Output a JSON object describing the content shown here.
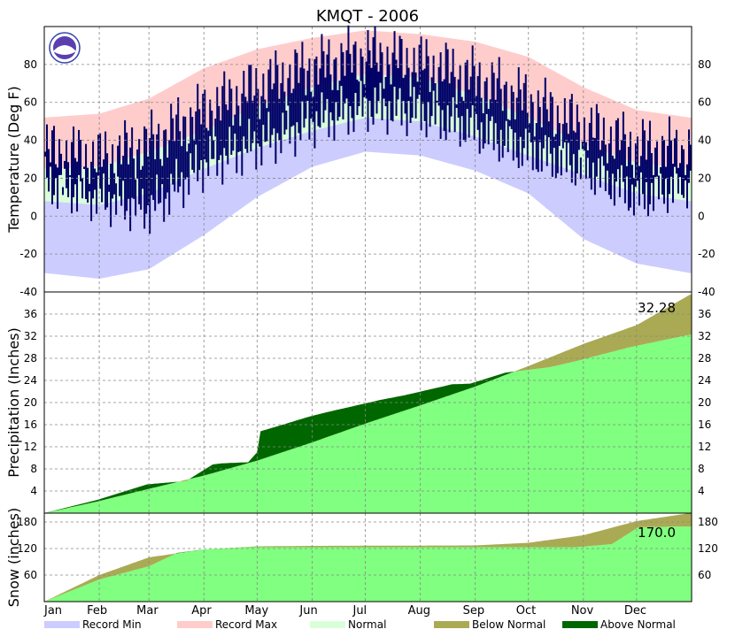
{
  "chart_data": {
    "type": "area",
    "title": "KMQT - 2006",
    "months": [
      "Jan",
      "Feb",
      "Mar",
      "Apr",
      "May",
      "Jun",
      "Jul",
      "Aug",
      "Sep",
      "Oct",
      "Nov",
      "Dec"
    ],
    "legend": [
      {
        "label": "Record Min",
        "color": "#ccccff"
      },
      {
        "label": "Record Max",
        "color": "#ffcccc"
      },
      {
        "label": "Normal",
        "color": "#d9ffd9"
      },
      {
        "label": "Below Normal",
        "color": "#aaaa55"
      },
      {
        "label": "Above Normal",
        "color": "#006600"
      }
    ],
    "panels": [
      {
        "name": "temperature",
        "ylabel": "Temperature (Deg F)",
        "ylim": [
          -40,
          100
        ],
        "yticks": [
          -40,
          -20,
          0,
          20,
          40,
          60,
          80
        ],
        "grid": true,
        "series": {
          "record_max": {
            "days": [
              0,
              31,
              59,
              90,
              120,
              151,
              181,
              212,
              243,
              273,
              304,
              334,
              364
            ],
            "values": [
              52,
              54,
              62,
              78,
              88,
              94,
              98,
              96,
              92,
              84,
              68,
              56,
              52
            ]
          },
          "normal_max": {
            "days": [
              0,
              31,
              59,
              90,
              120,
              151,
              181,
              212,
              243,
              273,
              304,
              334,
              364
            ],
            "values": [
              25,
              26,
              34,
              45,
              58,
              68,
              75,
              73,
              64,
              52,
              38,
              28,
              25
            ]
          },
          "normal_min": {
            "days": [
              0,
              31,
              59,
              90,
              120,
              151,
              181,
              212,
              243,
              273,
              304,
              334,
              364
            ],
            "values": [
              8,
              6,
              12,
              25,
              36,
              45,
              52,
              50,
              42,
              32,
              22,
              12,
              8
            ]
          },
          "record_min": {
            "days": [
              0,
              31,
              59,
              90,
              120,
              151,
              181,
              212,
              243,
              273,
              304,
              334,
              364
            ],
            "values": [
              -30,
              -33,
              -28,
              -10,
              10,
              26,
              34,
              32,
              24,
              12,
              -12,
              -25,
              -30
            ]
          },
          "observed_max": {
            "days": [
              0,
              31,
              59,
              90,
              120,
              151,
              181,
              212,
              243,
              273,
              304,
              334,
              364
            ],
            "values": [
              34,
              30,
              38,
              55,
              68,
              78,
              85,
              80,
              72,
              60,
              46,
              36,
              34
            ]
          },
          "observed_min": {
            "days": [
              0,
              31,
              59,
              90,
              120,
              151,
              181,
              212,
              243,
              273,
              304,
              334,
              364
            ],
            "values": [
              18,
              10,
              4,
              28,
              38,
              50,
              58,
              55,
              46,
              34,
              26,
              10,
              18
            ]
          }
        }
      },
      {
        "name": "precipitation",
        "ylabel": "Precipitation (Inches)",
        "ylim": [
          0,
          40
        ],
        "yticks": [
          4,
          8,
          12,
          16,
          20,
          24,
          28,
          32,
          36
        ],
        "grid": true,
        "annotation": "32.28",
        "series": {
          "observed": {
            "days": [
              0,
              30,
              58,
              80,
              95,
              100,
              115,
              120,
              122,
              150,
              160,
              190,
              203,
              230,
              240,
              260,
              285,
              300,
              330,
              364
            ],
            "values": [
              0,
              2.4,
              5.2,
              5.8,
              8.8,
              9.0,
              9.2,
              11.0,
              14.8,
              17.5,
              18.3,
              20.5,
              21.3,
              23.3,
              23.4,
              25.4,
              26.4,
              27.5,
              30.0,
              32.28
            ]
          },
          "normal": {
            "days": [
              0,
              31,
              59,
              90,
              120,
              151,
              181,
              212,
              243,
              273,
              304,
              334,
              364
            ],
            "values": [
              0,
              2.2,
              4.4,
              6.8,
              9.5,
              12.8,
              16.2,
              19.5,
              22.9,
              26.6,
              30.6,
              34.0,
              39.5
            ]
          }
        }
      },
      {
        "name": "snow",
        "ylabel": "Snow (inches)",
        "ylim": [
          0,
          200
        ],
        "yticks": [
          60,
          120,
          180
        ],
        "grid": true,
        "annotation": "170.0",
        "series": {
          "observed": {
            "days": [
              0,
              31,
              59,
              75,
              90,
              100,
              115,
              150,
              300,
              320,
              335,
              364
            ],
            "values": [
              0,
              50,
              80,
              110,
              118,
              120,
              123,
              123,
              123,
              130,
              168,
              170
            ]
          },
          "normal": {
            "days": [
              0,
              31,
              59,
              90,
              120,
              151,
              243,
              273,
              304,
              334,
              364
            ],
            "values": [
              0,
              60,
              100,
              118,
              125,
              126,
              127,
              133,
              150,
              182,
              200
            ]
          }
        }
      }
    ]
  }
}
